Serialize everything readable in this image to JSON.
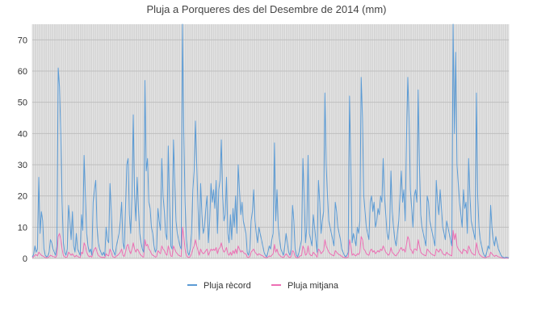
{
  "chart_data": {
    "type": "line",
    "title": "Pluja a Porqueres des del Desembre de 2014 (mm)",
    "xlabel": "",
    "ylabel": "",
    "ylim": [
      0,
      75
    ],
    "yticks": [
      0,
      10,
      20,
      30,
      40,
      50,
      60,
      70
    ],
    "grid": true,
    "legend_position": "bottom",
    "colors": {
      "record": "#5b9bd5",
      "mitjana": "#ed6fb4",
      "grid": "#bfbfbf",
      "plot_bg": "#e6e6e6"
    },
    "series": [
      {
        "name": "Pluja rècord",
        "values": [
          0.5,
          1.2,
          4,
          2,
          3,
          26,
          8,
          15,
          12,
          3,
          1,
          0.5,
          0.8,
          2,
          6,
          5,
          3,
          2,
          1,
          4,
          61,
          55,
          40,
          18,
          5,
          2,
          1,
          3,
          17,
          12,
          6,
          15,
          4,
          2,
          8,
          3,
          2,
          1,
          14,
          9,
          33,
          20,
          8,
          4,
          2,
          3,
          1,
          18,
          22,
          25,
          10,
          5,
          3,
          2,
          1,
          2,
          0.8,
          10,
          6,
          5,
          24,
          15,
          3,
          2,
          1,
          4,
          6,
          8,
          12,
          18,
          5,
          3,
          16,
          30,
          32,
          14,
          8,
          20,
          46,
          20,
          12,
          26,
          16,
          8,
          5,
          3,
          2,
          57,
          28,
          32,
          18,
          16,
          10,
          8,
          4,
          2,
          3,
          16,
          12,
          9,
          32,
          20,
          15,
          8,
          6,
          36,
          18,
          4,
          3,
          38,
          25,
          12,
          8,
          6,
          4,
          3,
          77,
          40,
          18,
          6,
          2,
          1,
          3,
          8,
          22,
          28,
          44,
          30,
          16,
          6,
          24,
          14,
          8,
          10,
          16,
          20,
          5,
          12,
          24,
          18,
          22,
          16,
          25,
          8,
          22,
          25,
          38,
          20,
          12,
          14,
          26,
          8,
          5,
          14,
          6,
          16,
          10,
          20,
          8,
          30,
          22,
          14,
          18,
          12,
          10,
          8,
          2,
          1,
          3,
          12,
          15,
          22,
          12,
          8,
          5,
          10,
          8,
          6,
          4,
          2,
          1,
          0.5,
          2,
          4,
          3,
          6,
          8,
          37,
          12,
          22,
          10,
          6,
          3,
          2,
          1,
          4,
          8,
          5,
          2,
          1,
          3,
          17,
          12,
          3,
          1,
          0.5,
          2,
          4,
          6,
          32,
          20,
          5,
          10,
          33,
          8,
          6,
          4,
          14,
          10,
          6,
          2,
          25,
          18,
          8,
          12,
          15,
          53,
          30,
          20,
          12,
          10,
          8,
          6,
          4,
          18,
          15,
          10,
          8,
          6,
          3,
          2,
          1,
          0.5,
          1,
          2,
          52,
          30,
          5,
          8,
          6,
          4,
          10,
          8,
          12,
          58,
          45,
          20,
          15,
          10,
          8,
          6,
          18,
          20,
          15,
          18,
          10,
          12,
          16,
          14,
          20,
          18,
          32,
          20,
          14,
          8,
          6,
          10,
          28,
          15,
          10,
          6,
          4,
          8,
          12,
          20,
          28,
          18,
          22,
          12,
          38,
          58,
          45,
          22,
          16,
          10,
          20,
          22,
          18,
          54,
          30,
          14,
          10,
          8,
          6,
          4,
          20,
          18,
          12,
          10,
          8,
          6,
          4,
          25,
          18,
          14,
          22,
          16,
          10,
          8,
          6,
          12,
          10,
          8,
          6,
          4,
          77,
          40,
          66,
          30,
          24,
          18,
          14,
          10,
          22,
          16,
          18,
          8,
          32,
          20,
          12,
          10,
          8,
          6,
          53,
          20,
          10,
          6,
          4,
          2,
          1,
          0.5,
          2,
          4,
          3,
          17,
          10,
          6,
          4,
          7,
          5,
          3,
          2,
          1,
          0.5,
          0.3,
          0.2,
          0.4,
          0.3,
          0.2
        ]
      },
      {
        "name": "Pluja mitjana",
        "values": [
          0.2,
          0.5,
          1,
          1.2,
          0.8,
          2,
          1.5,
          1,
          0.8,
          0.5,
          0.3,
          0.2,
          0.3,
          0.5,
          1,
          0.8,
          0.6,
          0.5,
          0.3,
          1,
          7,
          8,
          6,
          3,
          1,
          0.5,
          0.3,
          0.5,
          2,
          1.5,
          1,
          1.5,
          0.8,
          0.5,
          1,
          0.6,
          0.4,
          0.3,
          2,
          1.5,
          5,
          4,
          2,
          1,
          0.5,
          0.8,
          0.4,
          2,
          3,
          3.5,
          2,
          1,
          0.6,
          0.4,
          0.3,
          0.4,
          0.2,
          1.5,
          1,
          0.8,
          3,
          2,
          0.6,
          0.4,
          0.3,
          0.8,
          1,
          1.5,
          2,
          3,
          1,
          0.6,
          2,
          4,
          4.5,
          2.5,
          1.5,
          3,
          5,
          3,
          2,
          3,
          2.5,
          1.5,
          1,
          0.6,
          0.4,
          6,
          4,
          4.5,
          3,
          2.5,
          1.5,
          1,
          0.8,
          0.4,
          0.6,
          2.5,
          2,
          1.5,
          4,
          3,
          2.5,
          1.5,
          1,
          4,
          2.5,
          0.8,
          0.6,
          4,
          3,
          2,
          1.5,
          1,
          0.8,
          0.6,
          10,
          7,
          3,
          1,
          0.4,
          0.3,
          0.6,
          1.5,
          3,
          4,
          6,
          4,
          2.5,
          1,
          3,
          2,
          1.5,
          1.8,
          2.5,
          3,
          1,
          2,
          3,
          2.5,
          3,
          2.5,
          3.5,
          1.5,
          3,
          3.5,
          5,
          3,
          2,
          2.5,
          3.5,
          1.5,
          1,
          2,
          1,
          2.5,
          1.5,
          3,
          1.5,
          4,
          3,
          2,
          2.5,
          2,
          1.5,
          1.5,
          0.4,
          0.3,
          0.6,
          2,
          2.5,
          3,
          2,
          1.5,
          1,
          1.5,
          1.2,
          1,
          0.8,
          0.4,
          0.3,
          0.2,
          0.4,
          0.8,
          0.6,
          1,
          1.5,
          4.5,
          2,
          3,
          1.5,
          1,
          0.6,
          0.4,
          0.3,
          0.8,
          1.5,
          1,
          0.4,
          0.3,
          0.6,
          2.5,
          2,
          0.6,
          0.3,
          0.2,
          0.4,
          0.8,
          1,
          4,
          3,
          1,
          1.5,
          4,
          1.5,
          1,
          0.8,
          2,
          1.5,
          1,
          0.4,
          3,
          2.5,
          1.5,
          2,
          2.5,
          6,
          4,
          3,
          2,
          1.5,
          1.2,
          1,
          0.8,
          2.5,
          2,
          1.5,
          1.2,
          1,
          0.6,
          0.4,
          0.3,
          0.2,
          0.3,
          0.4,
          6,
          4,
          1,
          1.5,
          1,
          0.8,
          1.5,
          1.2,
          2,
          7,
          6,
          3,
          2.5,
          1.5,
          1.2,
          1,
          2.5,
          3,
          2,
          2.5,
          1.5,
          2,
          2.5,
          2,
          3,
          2.5,
          4,
          3,
          2,
          1.5,
          1,
          1.5,
          3.5,
          2,
          1.5,
          1,
          0.8,
          1.5,
          2,
          3,
          3.5,
          2.5,
          3,
          2,
          4.5,
          7,
          6,
          3,
          2.5,
          1.5,
          3,
          3,
          2.5,
          6,
          4,
          2,
          1.5,
          1.2,
          1,
          0.8,
          3,
          2.5,
          2,
          1.5,
          1.2,
          1,
          0.8,
          3,
          2.5,
          2,
          3,
          2.5,
          1.5,
          1.2,
          1,
          2,
          1.5,
          1.2,
          1,
          0.8,
          9,
          6,
          8,
          4,
          3,
          2.5,
          2,
          1.5,
          3,
          2.5,
          2.5,
          1.5,
          4,
          3,
          2,
          1.5,
          1.2,
          1,
          5,
          3,
          1.5,
          1,
          0.6,
          0.4,
          0.3,
          0.2,
          0.4,
          0.6,
          0.5,
          2,
          1.5,
          1,
          0.6,
          1,
          0.8,
          0.5,
          0.4,
          0.3,
          0.2,
          0.1,
          0.1,
          0.1,
          0.1,
          0.1
        ]
      }
    ]
  }
}
